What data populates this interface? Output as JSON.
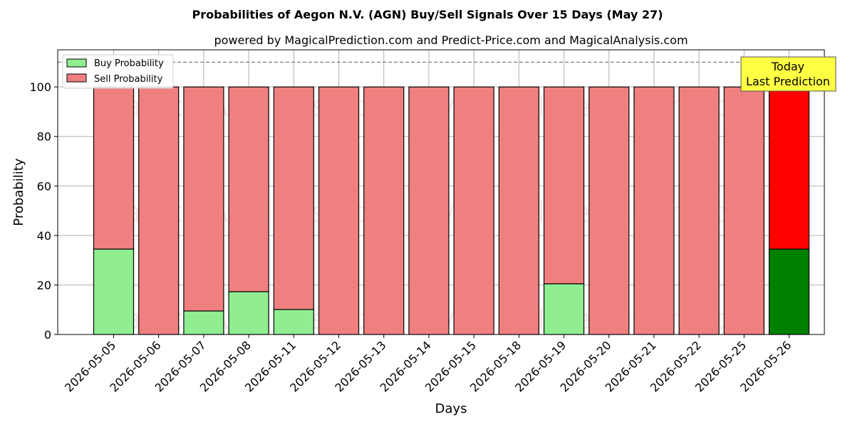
{
  "chart_data": {
    "type": "bar",
    "stacked": true,
    "title": "Probabilities of Aegon N.V. (AGN) Buy/Sell Signals Over 15 Days (May 27)",
    "subtitle": "powered by MagicalPrediction.com and Predict-Price.com and MagicalAnalysis.com",
    "xlabel": "Days",
    "ylabel": "Probability",
    "ylim": [
      0,
      115
    ],
    "yticks": [
      0,
      20,
      40,
      60,
      80,
      100
    ],
    "reference_line": 110,
    "grid": true,
    "legend_position": "top-left",
    "categories": [
      "2026-05-05",
      "2026-05-06",
      "2026-05-07",
      "2026-05-08",
      "2026-05-11",
      "2026-05-12",
      "2026-05-13",
      "2026-05-14",
      "2026-05-15",
      "2026-05-18",
      "2026-05-19",
      "2026-05-20",
      "2026-05-21",
      "2026-05-22",
      "2026-05-25",
      "2026-05-26"
    ],
    "series": [
      {
        "name": "Buy Probability",
        "color": "#90ee90",
        "highlight_color": "#008000",
        "values": [
          34.5,
          0,
          9.5,
          17.3,
          10.1,
          0,
          0,
          0,
          0,
          0,
          20.5,
          0,
          0,
          0,
          0,
          34.5
        ]
      },
      {
        "name": "Sell Probability",
        "color": "#f08080",
        "highlight_color": "#ff0000",
        "values": [
          65.5,
          100,
          90.5,
          82.7,
          89.9,
          100,
          100,
          100,
          100,
          100,
          79.5,
          100,
          100,
          100,
          100,
          65.5
        ]
      }
    ],
    "highlight_index": 15,
    "annotation": {
      "line1": "Today",
      "line2": "Last Prediction",
      "background": "#ffff44"
    },
    "watermarks": [
      "MagicalAnalysis.com",
      "MagicalPrediction.com"
    ]
  }
}
